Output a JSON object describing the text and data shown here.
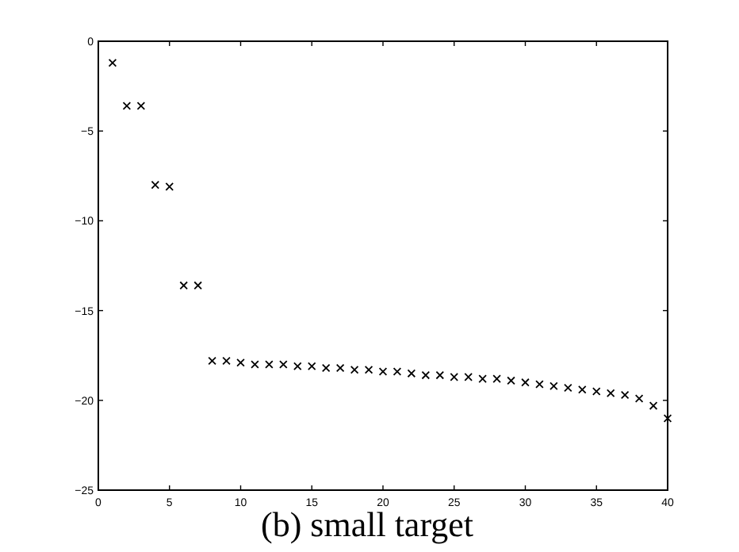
{
  "chart_data": {
    "type": "scatter",
    "marker": "cross",
    "title": "(b) small target",
    "xlim": [
      0,
      40
    ],
    "xticks": [
      0,
      5,
      10,
      15,
      20,
      25,
      30,
      35,
      40
    ],
    "ylim": [
      -25,
      0
    ],
    "yticks": [
      -25,
      -20,
      -15,
      -10,
      -5,
      0
    ],
    "series": [
      {
        "color": "#000000",
        "x": [
          1,
          2,
          3,
          4,
          5,
          6,
          7,
          8,
          9,
          10,
          11,
          12,
          13,
          14,
          15,
          16,
          17,
          18,
          19,
          20,
          21,
          22,
          23,
          24,
          25,
          26,
          27,
          28,
          29,
          30,
          31,
          32,
          33,
          34,
          35,
          36,
          37,
          38,
          39,
          40
        ],
        "values": [
          -1.2,
          -3.6,
          -3.6,
          -8.0,
          -8.1,
          -13.6,
          -13.6,
          -17.8,
          -17.8,
          -17.9,
          -18.0,
          -18.0,
          -18.0,
          -18.1,
          -18.1,
          -18.2,
          -18.2,
          -18.3,
          -18.3,
          -18.4,
          -18.4,
          -18.5,
          -18.6,
          -18.6,
          -18.7,
          -18.7,
          -18.8,
          -18.8,
          -18.9,
          -19.0,
          -19.1,
          -19.2,
          -19.3,
          -19.4,
          -19.5,
          -19.6,
          -19.7,
          -19.9,
          -20.3,
          -21.0
        ]
      }
    ]
  }
}
